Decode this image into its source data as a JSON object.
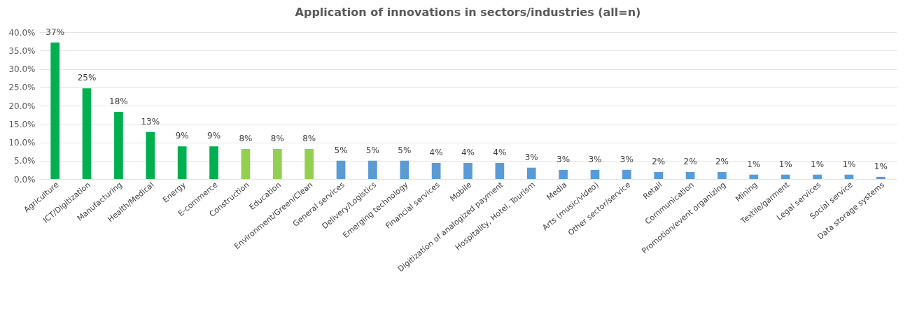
{
  "chart_data": {
    "type": "bar",
    "title": "Application of innovations in sectors/industries (all=n)",
    "categories": [
      "Agriculture",
      "ICT/Digitization",
      "Manufacturing",
      "Health/Medical",
      "Energy",
      "E-commerce",
      "Construction",
      "Education",
      "Environment/Green/Clean",
      "General services",
      "Delivery/Logistics",
      "Emerging technology",
      "Financial services",
      "Mobile",
      "Digitization of analogized payment",
      "Hospitality, Hotel, Tourism",
      "Media",
      "Arts (music/video)",
      "Other sector/service",
      "Retail",
      "Communication",
      "Promotion/event organizing",
      "Mining",
      "Textile/garment",
      "Legal services",
      "Social service",
      "Data storage systems"
    ],
    "values": [
      37.2,
      24.7,
      18.3,
      12.8,
      8.9,
      8.9,
      8.2,
      8.2,
      8.2,
      5.0,
      5.0,
      5.0,
      4.4,
      4.4,
      4.4,
      3.1,
      2.5,
      2.5,
      2.5,
      1.9,
      1.9,
      1.9,
      1.2,
      1.2,
      1.2,
      1.2,
      0.6
    ],
    "value_labels": [
      "37%",
      "25%",
      "18%",
      "13%",
      "9%",
      "9%",
      "8%",
      "8%",
      "8%",
      "5%",
      "5%",
      "5%",
      "4%",
      "4%",
      "4%",
      "3%",
      "3%",
      "3%",
      "3%",
      "2%",
      "2%",
      "2%",
      "1%",
      "1%",
      "1%",
      "1%",
      "1%"
    ],
    "colors": [
      "#00b050",
      "#00b050",
      "#00b050",
      "#00b050",
      "#00b050",
      "#00b050",
      "#92d050",
      "#92d050",
      "#92d050",
      "#5b9bd5",
      "#5b9bd5",
      "#5b9bd5",
      "#5b9bd5",
      "#5b9bd5",
      "#5b9bd5",
      "#5b9bd5",
      "#5b9bd5",
      "#5b9bd5",
      "#5b9bd5",
      "#5b9bd5",
      "#5b9bd5",
      "#5b9bd5",
      "#5b9bd5",
      "#5b9bd5",
      "#5b9bd5",
      "#5b9bd5",
      "#5b9bd5"
    ],
    "ylim": [
      0,
      40
    ],
    "yticks": [
      {
        "value": 0,
        "label": "0.0%"
      },
      {
        "value": 5,
        "label": "5.0%"
      },
      {
        "value": 10,
        "label": "10.0%"
      },
      {
        "value": 15,
        "label": "15.0%"
      },
      {
        "value": 20,
        "label": "20.0%"
      },
      {
        "value": 25,
        "label": "25.0%"
      },
      {
        "value": 30,
        "label": "30.0%"
      },
      {
        "value": 35,
        "label": "35.0%"
      },
      {
        "value": 40,
        "label": "40.0%"
      }
    ],
    "grid": "y"
  }
}
